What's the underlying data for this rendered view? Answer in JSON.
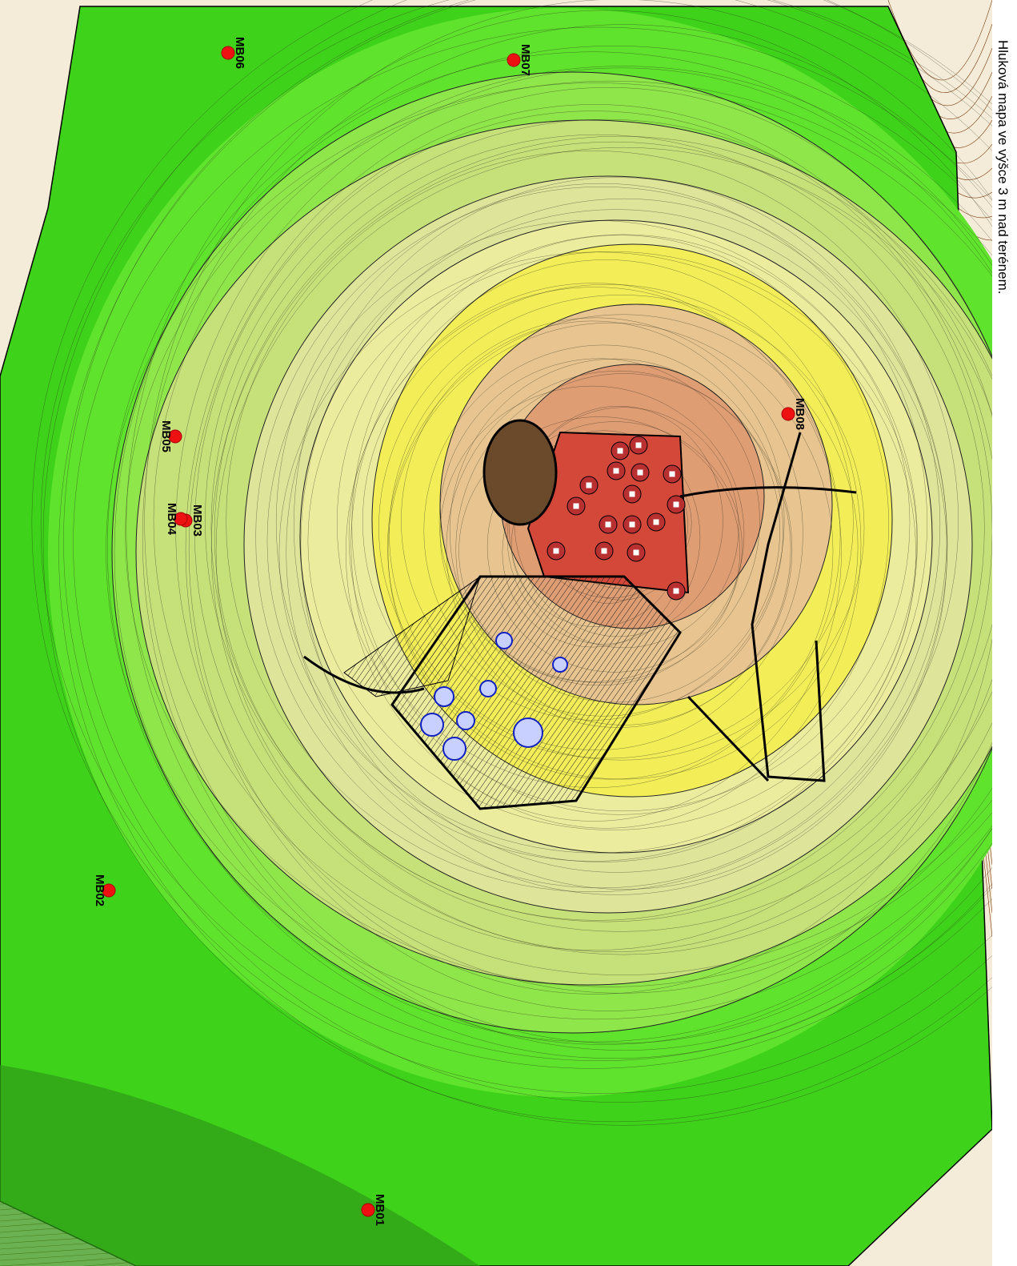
{
  "title": "Hluková mapa ve výšce 3 m nad terénem.",
  "markers": [
    {
      "label": "MB06"
    },
    {
      "label": "MB07"
    },
    {
      "label": "MB08"
    },
    {
      "label": "MB05"
    },
    {
      "label": "MB03"
    },
    {
      "label": "MB04"
    },
    {
      "label": "MB02"
    },
    {
      "label": "MB01"
    }
  ]
}
